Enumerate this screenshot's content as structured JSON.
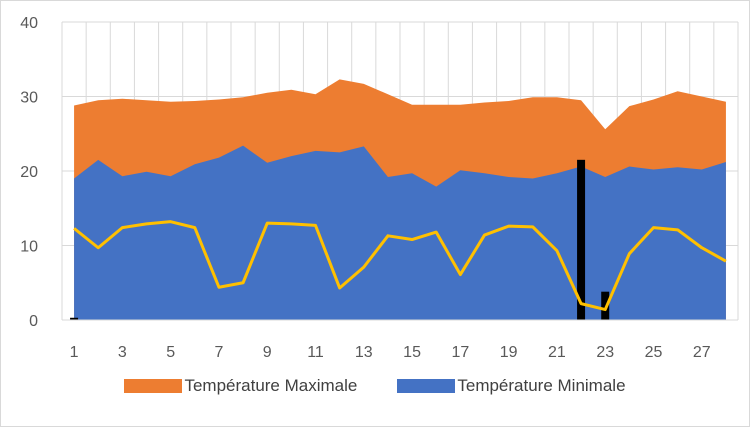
{
  "chart_data": {
    "type": "area",
    "title": "",
    "xlabel": "",
    "ylabel": "",
    "ylim": [
      0,
      40
    ],
    "yticks": [
      0,
      10,
      20,
      30,
      40
    ],
    "x": [
      1,
      2,
      3,
      4,
      5,
      6,
      7,
      8,
      9,
      10,
      11,
      12,
      13,
      14,
      15,
      16,
      17,
      18,
      19,
      20,
      21,
      22,
      23,
      24,
      25,
      26,
      27,
      28
    ],
    "xtick_labels": [
      "1",
      "3",
      "5",
      "7",
      "9",
      "11",
      "13",
      "15",
      "17",
      "19",
      "21",
      "23",
      "25",
      "27"
    ],
    "grid": "vertical and horizontal",
    "legend_position": "bottom",
    "series": [
      {
        "name": "Température Maximale",
        "type": "area",
        "color": "#ed7d31",
        "values": [
          28.8,
          29.5,
          29.7,
          29.5,
          29.3,
          29.4,
          29.6,
          29.9,
          30.5,
          30.9,
          30.3,
          32.3,
          31.7,
          30.3,
          28.9,
          28.9,
          28.9,
          29.2,
          29.4,
          29.9,
          29.9,
          29.5,
          25.6,
          28.7,
          29.6,
          30.7,
          30.0,
          29.3
        ]
      },
      {
        "name": "Température Minimale",
        "type": "area",
        "color": "#4472c4",
        "values": [
          19.0,
          21.5,
          19.3,
          19.9,
          19.3,
          20.9,
          21.8,
          23.4,
          21.1,
          22.0,
          22.7,
          22.5,
          23.3,
          19.2,
          19.7,
          17.9,
          20.1,
          19.7,
          19.2,
          19.0,
          19.7,
          20.6,
          19.2,
          20.6,
          20.2,
          20.5,
          20.2,
          21.2
        ]
      },
      {
        "type": "line",
        "color": "#ffc000",
        "values": [
          12.3,
          9.7,
          12.4,
          12.9,
          13.2,
          12.4,
          4.4,
          5.0,
          13.0,
          12.9,
          12.7,
          4.3,
          7.1,
          11.3,
          10.8,
          11.8,
          6.1,
          11.4,
          12.6,
          12.5,
          9.3,
          2.2,
          1.4,
          8.9,
          12.4,
          12.1,
          9.7,
          7.9
        ]
      },
      {
        "type": "bar",
        "color": "#000000",
        "values": [
          0.3,
          0,
          0,
          0,
          0,
          0,
          0,
          0,
          0,
          0,
          0,
          0,
          0,
          0,
          0,
          0,
          0,
          0,
          0,
          0,
          0,
          21.5,
          3.8,
          0,
          0,
          0,
          0,
          0
        ]
      }
    ]
  }
}
